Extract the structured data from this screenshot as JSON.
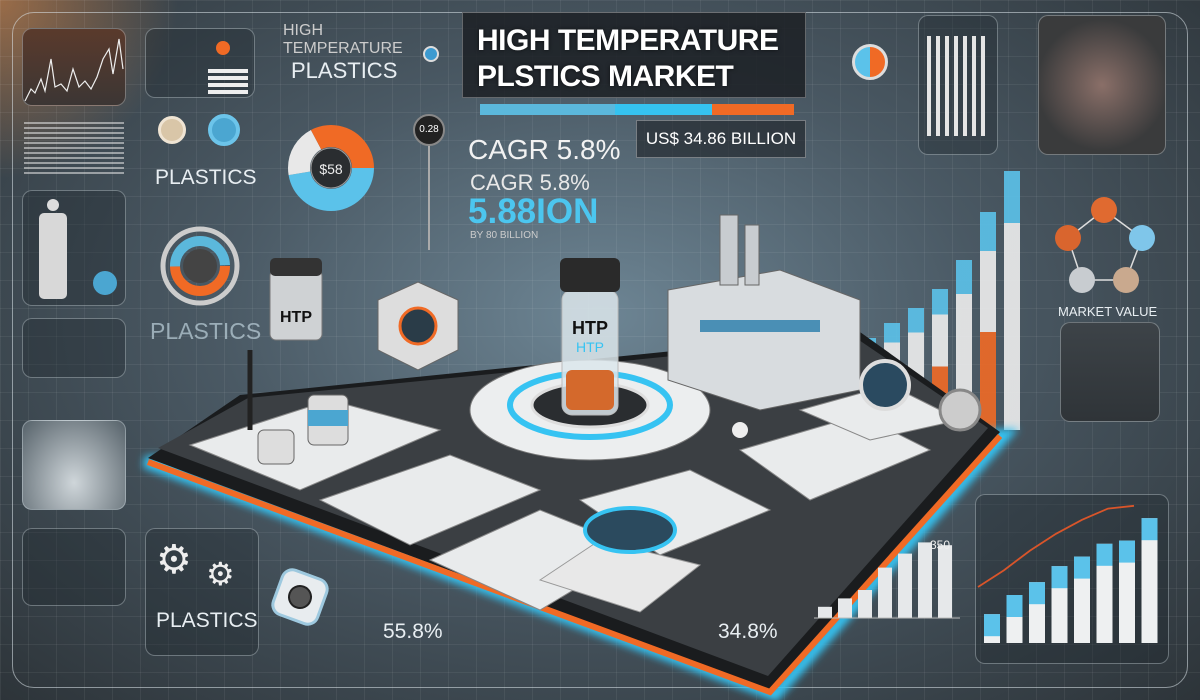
{
  "header": {
    "title_line1": "HIGH TEMPERATURE",
    "title_line2": "PLSTICS MARKET"
  },
  "stats": {
    "cagr_primary": "CAGR 5.8%",
    "market_value": "US$ 34.86 BILLION",
    "cagr_secondary": "CAGR 5.8%",
    "value_highlight": "5.88ION",
    "value_caption": "BY 80 BILLION",
    "gauge_label": "0.28",
    "donut_center": "$58"
  },
  "labels": {
    "top_panel_line1": "HIGH TEMPERATURE",
    "top_panel_line2": "PLASTICS",
    "plastics_1": "PLASTICS",
    "plastics_2": "PLASTICS",
    "plastics_3": "PLASTICS",
    "market_value": "MARKET VALUE",
    "jar_label": "HTP",
    "jar_label_2": "HTP",
    "percent_left": "55.8%",
    "percent_right": "34.8%",
    "small_chart_value": "350"
  },
  "progress_bar": [
    {
      "share": 0.43,
      "color": "#5bb8dc"
    },
    {
      "share": 0.31,
      "color": "#35c3f0"
    },
    {
      "share": 0.26,
      "color": "#f06a25"
    }
  ],
  "colors": {
    "accent_orange": "#f06a25",
    "accent_blue": "#4cc6ef",
    "panel_dark": "#1c2024"
  },
  "bottom_chart": {
    "values": [
      18,
      30,
      38,
      48,
      54,
      62,
      64,
      78
    ],
    "trend": [
      40,
      52,
      66,
      78,
      88,
      96,
      98
    ]
  },
  "small_chart": {
    "values": [
      8,
      14,
      20,
      36,
      46,
      54,
      52
    ]
  },
  "right_bars": {
    "values": [
      50,
      58,
      66,
      76,
      92,
      118,
      140
    ]
  }
}
